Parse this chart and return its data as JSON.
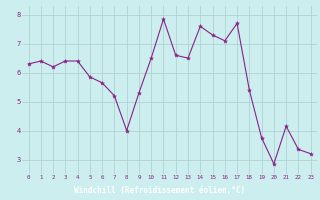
{
  "x": [
    0,
    1,
    2,
    3,
    4,
    5,
    6,
    7,
    8,
    9,
    10,
    11,
    12,
    13,
    14,
    15,
    16,
    17,
    18,
    19,
    20,
    21,
    22,
    23
  ],
  "y": [
    6.3,
    6.4,
    6.2,
    6.4,
    6.4,
    5.85,
    5.65,
    5.2,
    4.0,
    5.3,
    6.5,
    7.85,
    6.6,
    6.5,
    7.6,
    7.3,
    7.1,
    7.7,
    5.4,
    3.75,
    2.85,
    4.15,
    3.35,
    3.2
  ],
  "line_color": "#882288",
  "marker": "*",
  "marker_size": 3,
  "bg_color": "#cceeee",
  "grid_color": "#aacccc",
  "xlabel": "Windchill (Refroidissement éolien,°C)",
  "xlabel_text_color": "#ffffff",
  "xlabel_bg": "#882288",
  "ylim": [
    2.5,
    8.3
  ],
  "xlim": [
    -0.5,
    23.5
  ],
  "yticks": [
    3,
    4,
    5,
    6,
    7,
    8
  ],
  "xticks": [
    0,
    1,
    2,
    3,
    4,
    5,
    6,
    7,
    8,
    9,
    10,
    11,
    12,
    13,
    14,
    15,
    16,
    17,
    18,
    19,
    20,
    21,
    22,
    23
  ],
  "tick_label_color": "#882288",
  "tick_fontsize": 4.2,
  "ytick_fontsize": 5.0
}
